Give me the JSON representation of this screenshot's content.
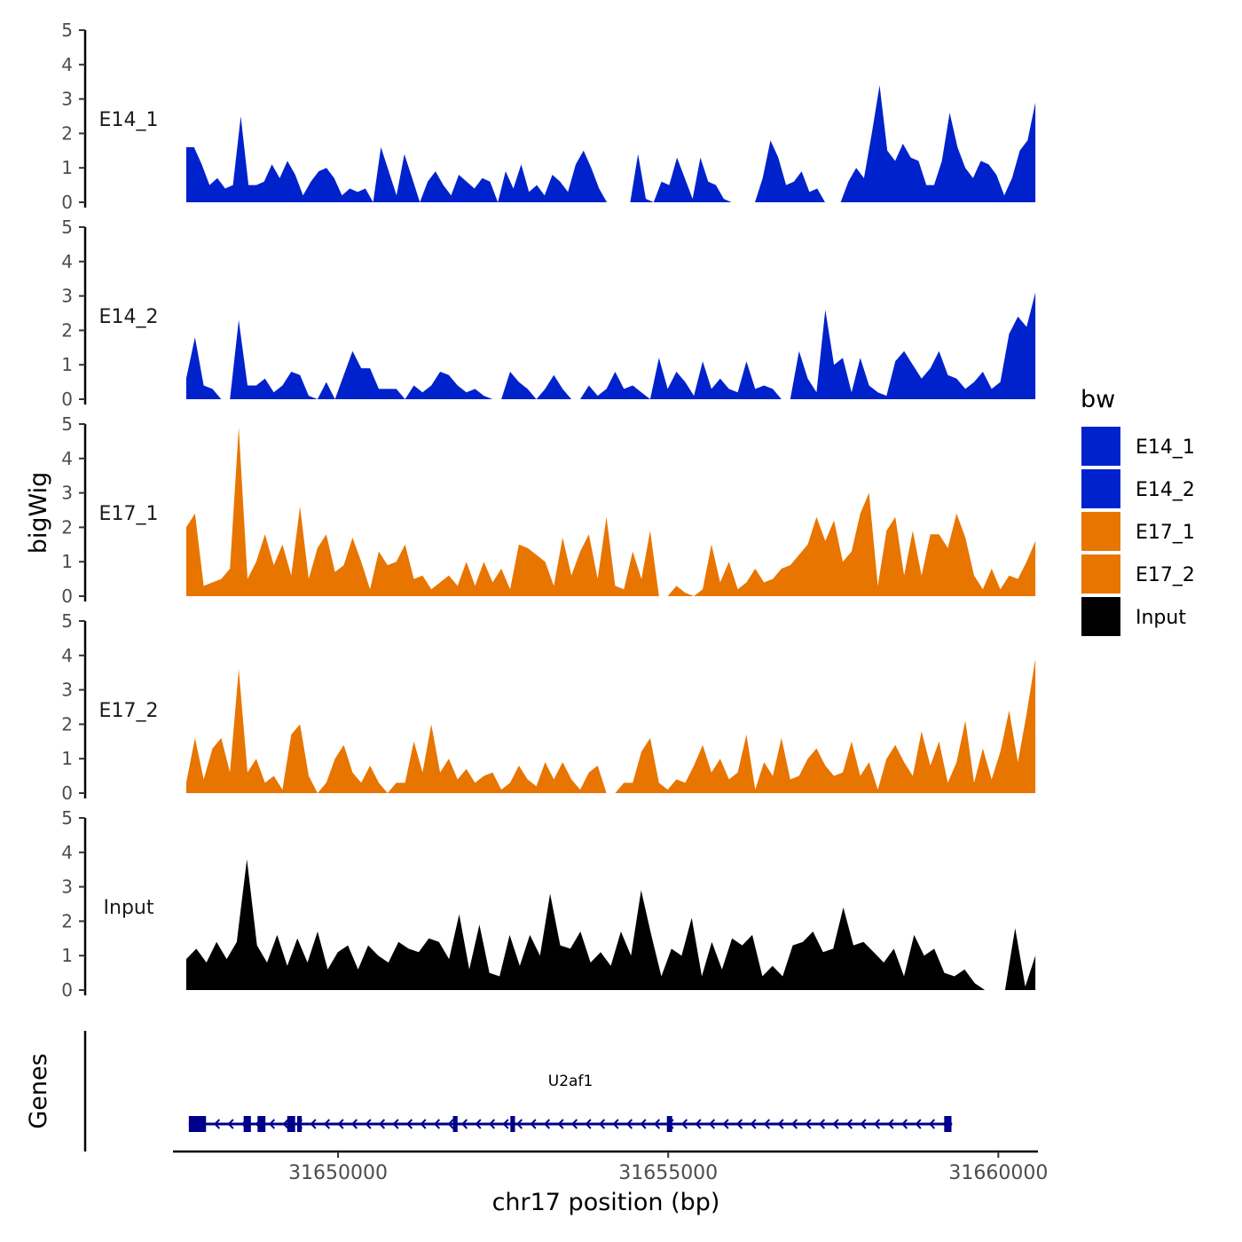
{
  "chart_data": {
    "type": "area",
    "ylabel": "bigWig",
    "genes_label": "Genes",
    "xlabel": "chr17 position (bp)",
    "xlim": [
      31647500,
      31660600
    ],
    "x_ticks": [
      31650000,
      31655000,
      31660000
    ],
    "x_tick_labels": [
      "31650000",
      "31655000",
      "31660000"
    ],
    "ylim": [
      0,
      5
    ],
    "y_ticks": [
      0,
      1,
      2,
      3,
      4,
      5
    ],
    "y_tick_labels": [
      "0",
      "1",
      "2",
      "3",
      "4",
      "5"
    ],
    "track_x_range": [
      31647700,
      31661300
    ],
    "legend": {
      "title": "bw",
      "entries": [
        {
          "label": "E14_1",
          "color": "#0022CC"
        },
        {
          "label": "E14_2",
          "color": "#0022CC"
        },
        {
          "label": "E17_1",
          "color": "#E87500"
        },
        {
          "label": "E17_2",
          "color": "#E87500"
        },
        {
          "label": "Input",
          "color": "#000000"
        }
      ]
    },
    "series": [
      {
        "name": "E14_1",
        "label": "E14_1",
        "color": "#0022CC",
        "values": [
          1.6,
          1.6,
          1.1,
          0.5,
          0.7,
          0.4,
          0.5,
          2.5,
          0.5,
          0.5,
          0.6,
          1.1,
          0.7,
          1.2,
          0.8,
          0.2,
          0.6,
          0.9,
          1.0,
          0.7,
          0.2,
          0.4,
          0.3,
          0.4,
          0,
          1.6,
          0.9,
          0.2,
          1.4,
          0.7,
          0,
          0.6,
          0.9,
          0.5,
          0.2,
          0.8,
          0.6,
          0.4,
          0.7,
          0.6,
          0,
          0.9,
          0.4,
          1.1,
          0.3,
          0.5,
          0.2,
          0.8,
          0.6,
          0.3,
          1.1,
          1.5,
          1.0,
          0.4,
          0,
          0,
          0,
          0,
          1.4,
          0.1,
          0,
          0.6,
          0.5,
          1.3,
          0.7,
          0.1,
          1.3,
          0.6,
          0.5,
          0.1,
          0,
          0,
          0,
          0,
          0.7,
          1.8,
          1.3,
          0.5,
          0.6,
          0.9,
          0.3,
          0.4,
          0,
          0,
          0,
          0.6,
          1.0,
          0.7,
          2.0,
          3.4,
          1.5,
          1.2,
          1.7,
          1.3,
          1.2,
          0.5,
          0.5,
          1.2,
          2.6,
          1.6,
          1.0,
          0.7,
          1.2,
          1.1,
          0.8,
          0.2,
          0.7,
          1.5,
          1.8,
          2.9
        ]
      },
      {
        "name": "E14_2",
        "label": "E14_2",
        "color": "#0022CC",
        "values": [
          0.6,
          1.8,
          0.4,
          0.3,
          0,
          0,
          2.3,
          0.4,
          0.4,
          0.6,
          0.2,
          0.4,
          0.8,
          0.7,
          0.1,
          0,
          0.5,
          0,
          0.7,
          1.4,
          0.9,
          0.9,
          0.3,
          0.3,
          0.3,
          0,
          0.4,
          0.2,
          0.4,
          0.8,
          0.7,
          0.4,
          0.2,
          0.3,
          0.1,
          0,
          0,
          0.8,
          0.5,
          0.3,
          0,
          0.3,
          0.7,
          0.3,
          0,
          0,
          0.4,
          0.1,
          0.3,
          0.8,
          0.3,
          0.4,
          0.2,
          0,
          1.2,
          0.3,
          0.8,
          0.5,
          0.1,
          1.1,
          0.3,
          0.6,
          0.3,
          0.2,
          1.1,
          0.3,
          0.4,
          0.3,
          0,
          0,
          1.4,
          0.6,
          0.2,
          2.6,
          1.0,
          1.2,
          0.2,
          1.2,
          0.4,
          0.2,
          0.1,
          1.1,
          1.4,
          1.0,
          0.6,
          0.9,
          1.4,
          0.7,
          0.6,
          0.3,
          0.5,
          0.8,
          0.3,
          0.5,
          1.9,
          2.4,
          2.1,
          3.1
        ]
      },
      {
        "name": "E17_1",
        "label": "E17_1",
        "color": "#E87500",
        "values": [
          2.0,
          2.4,
          0.3,
          0.4,
          0.5,
          0.8,
          4.9,
          0.5,
          1.0,
          1.8,
          0.9,
          1.5,
          0.6,
          2.6,
          0.5,
          1.4,
          1.8,
          0.7,
          0.9,
          1.7,
          1.0,
          0.2,
          1.3,
          0.9,
          1.0,
          1.5,
          0.5,
          0.6,
          0.2,
          0.4,
          0.6,
          0.3,
          1.0,
          0.3,
          1.0,
          0.4,
          0.8,
          0.2,
          1.5,
          1.4,
          1.2,
          1.0,
          0.3,
          1.7,
          0.6,
          1.3,
          1.8,
          0.5,
          2.3,
          0.3,
          0.2,
          1.3,
          0.5,
          1.9,
          0,
          0,
          0.3,
          0.1,
          0,
          0.2,
          1.5,
          0.4,
          1.0,
          0.2,
          0.4,
          0.8,
          0.4,
          0.5,
          0.8,
          0.9,
          1.2,
          1.5,
          2.3,
          1.6,
          2.2,
          1.0,
          1.3,
          2.4,
          3.0,
          0.3,
          1.9,
          2.3,
          0.6,
          1.9,
          0.6,
          1.8,
          1.8,
          1.4,
          2.4,
          1.7,
          0.6,
          0.2,
          0.8,
          0.2,
          0.6,
          0.5,
          1.0,
          1.6
        ]
      },
      {
        "name": "E17_2",
        "label": "E17_2",
        "color": "#E87500",
        "values": [
          0.3,
          1.6,
          0.4,
          1.3,
          1.6,
          0.6,
          3.6,
          0.6,
          1.0,
          0.3,
          0.5,
          0.1,
          1.7,
          2.0,
          0.5,
          0,
          0.3,
          1.0,
          1.4,
          0.6,
          0.3,
          0.8,
          0.3,
          0,
          0.3,
          0.3,
          1.5,
          0.6,
          2.0,
          0.6,
          1.0,
          0.4,
          0.7,
          0.3,
          0.5,
          0.6,
          0.1,
          0.3,
          0.8,
          0.4,
          0.2,
          0.9,
          0.4,
          0.9,
          0.4,
          0.1,
          0.6,
          0.8,
          0,
          0,
          0.3,
          0.3,
          1.2,
          1.6,
          0.3,
          0.1,
          0.4,
          0.3,
          0.8,
          1.4,
          0.6,
          1.0,
          0.4,
          0.6,
          1.7,
          0.1,
          0.9,
          0.5,
          1.6,
          0.4,
          0.5,
          1.0,
          1.3,
          0.8,
          0.5,
          0.6,
          1.5,
          0.5,
          0.9,
          0.1,
          1.0,
          1.4,
          0.9,
          0.5,
          1.8,
          0.8,
          1.5,
          0.3,
          0.9,
          2.1,
          0.3,
          1.3,
          0.4,
          1.2,
          2.4,
          0.9,
          2.3,
          3.9
        ]
      },
      {
        "name": "Input",
        "label": "Input",
        "color": "#000000",
        "values": [
          0.9,
          1.2,
          0.8,
          1.4,
          0.9,
          1.4,
          3.8,
          1.3,
          0.8,
          1.6,
          0.7,
          1.5,
          0.8,
          1.7,
          0.6,
          1.1,
          1.3,
          0.6,
          1.3,
          1.0,
          0.8,
          1.4,
          1.2,
          1.1,
          1.5,
          1.4,
          0.9,
          2.2,
          0.6,
          1.9,
          0.5,
          0.4,
          1.6,
          0.7,
          1.6,
          1.0,
          2.8,
          1.3,
          1.2,
          1.7,
          0.8,
          1.1,
          0.7,
          1.7,
          1.0,
          2.9,
          1.6,
          0.4,
          1.2,
          1.0,
          2.1,
          0.4,
          1.4,
          0.6,
          1.5,
          1.3,
          1.6,
          0.4,
          0.7,
          0.4,
          1.3,
          1.4,
          1.7,
          1.1,
          1.2,
          2.4,
          1.3,
          1.4,
          1.1,
          0.8,
          1.2,
          0.4,
          1.6,
          1.0,
          1.2,
          0.5,
          0.4,
          0.6,
          0.2,
          0,
          0,
          0,
          1.8,
          0.1,
          1.0
        ]
      }
    ],
    "genes": [
      {
        "name": "U2af1",
        "start": 31647740,
        "end": 31659300,
        "strand": "-",
        "exons": [
          {
            "start": 31647740,
            "end": 31648000
          },
          {
            "start": 31648570,
            "end": 31648680
          },
          {
            "start": 31648780,
            "end": 31648900
          },
          {
            "start": 31649230,
            "end": 31649350
          },
          {
            "start": 31649380,
            "end": 31649450
          },
          {
            "start": 31651740,
            "end": 31651810
          },
          {
            "start": 31652610,
            "end": 31652680
          },
          {
            "start": 31654980,
            "end": 31655060
          },
          {
            "start": 31659180,
            "end": 31659290
          }
        ]
      }
    ]
  }
}
